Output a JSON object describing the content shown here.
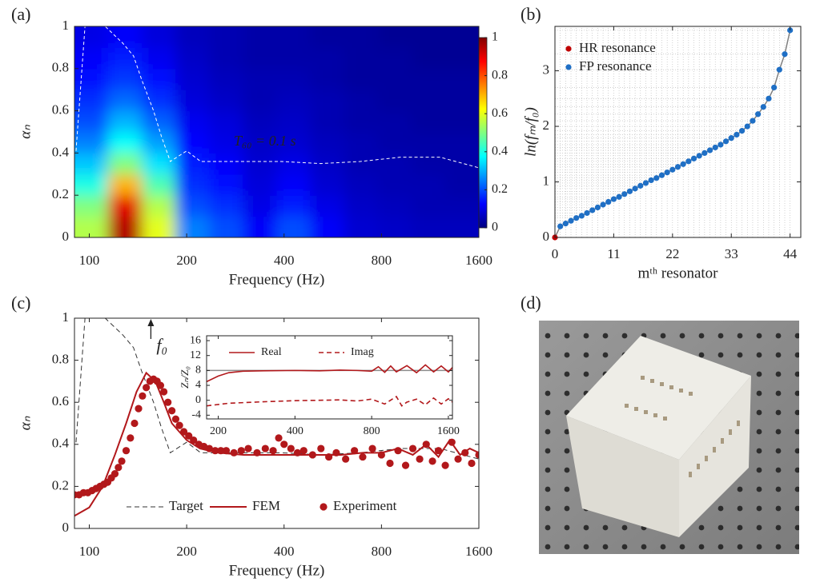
{
  "panel_labels": [
    "(a)",
    "(b)",
    "(c)",
    "(d)"
  ],
  "chart_data": [
    {
      "type": "heatmap",
      "xlabel": "Frequency (Hz)",
      "ylabel": "αₙ",
      "log_x": true,
      "xlim": [
        90,
        1600
      ],
      "ylim": [
        0,
        1
      ],
      "xticks": [
        100,
        200,
        400,
        800,
        1600
      ],
      "yticks": [
        0,
        0.2,
        0.4,
        0.6,
        0.8,
        1
      ],
      "x": [
        101,
        129,
        164,
        208,
        264,
        336,
        427,
        543,
        690,
        877,
        1115,
        1417
      ],
      "y": [
        0.05,
        0.15,
        0.25,
        0.35,
        0.45,
        0.55,
        0.65,
        0.75,
        0.85,
        0.95
      ],
      "z": [
        [
          0.55,
          0.95,
          0.6,
          0.25,
          0.2,
          0.12,
          0.2,
          0.12,
          0.08,
          0.07,
          0.06,
          0.06
        ],
        [
          0.5,
          0.9,
          0.55,
          0.2,
          0.17,
          0.1,
          0.15,
          0.1,
          0.07,
          0.06,
          0.05,
          0.05
        ],
        [
          0.4,
          0.7,
          0.45,
          0.17,
          0.14,
          0.09,
          0.12,
          0.08,
          0.06,
          0.05,
          0.05,
          0.04
        ],
        [
          0.32,
          0.5,
          0.35,
          0.15,
          0.12,
          0.08,
          0.1,
          0.07,
          0.05,
          0.05,
          0.04,
          0.04
        ],
        [
          0.25,
          0.38,
          0.28,
          0.13,
          0.1,
          0.07,
          0.08,
          0.06,
          0.05,
          0.04,
          0.04,
          0.04
        ],
        [
          0.2,
          0.3,
          0.22,
          0.11,
          0.09,
          0.06,
          0.07,
          0.05,
          0.04,
          0.04,
          0.03,
          0.03
        ],
        [
          0.17,
          0.23,
          0.17,
          0.09,
          0.07,
          0.05,
          0.06,
          0.05,
          0.04,
          0.03,
          0.03,
          0.03
        ],
        [
          0.14,
          0.18,
          0.14,
          0.08,
          0.06,
          0.05,
          0.05,
          0.04,
          0.03,
          0.03,
          0.03,
          0.03
        ],
        [
          0.12,
          0.15,
          0.11,
          0.07,
          0.05,
          0.04,
          0.04,
          0.04,
          0.03,
          0.03,
          0.02,
          0.02
        ],
        [
          0.1,
          0.12,
          0.09,
          0.06,
          0.05,
          0.04,
          0.04,
          0.03,
          0.03,
          0.02,
          0.02,
          0.02
        ]
      ],
      "colormap": "jet",
      "clim": [
        0,
        1
      ],
      "cticks": [
        0,
        0.2,
        0.4,
        0.6,
        0.8,
        1
      ],
      "overlay": {
        "color": "#ffffff",
        "x": [
          91,
          97,
          112,
          127,
          137,
          145,
          158,
          167,
          178,
          200,
          221,
          294,
          390,
          519,
          688,
          914,
          1216,
          1600
        ],
        "values": [
          0.41,
          1,
          1,
          0.92,
          0.86,
          0.75,
          0.6,
          0.48,
          0.36,
          0.41,
          0.36,
          0.36,
          0.36,
          0.35,
          0.36,
          0.38,
          0.38,
          0.33
        ]
      },
      "annotation": "T₆₀ = 0.1 s"
    },
    {
      "type": "scatter",
      "xlabel": "mᵗʰ resonator",
      "ylabel": "ln(fₘ/f₀)",
      "xlim": [
        0,
        46
      ],
      "ylim": [
        0,
        3.8
      ],
      "xticks": [
        0,
        11,
        22,
        33,
        44
      ],
      "yticks": [
        0,
        1,
        2,
        3
      ],
      "line_color": "#7f7f7f",
      "guides": true,
      "legend_loc": "upper left",
      "series": [
        {
          "name": "HR resonance",
          "color": "#c00000",
          "x": [
            0
          ],
          "values": [
            0
          ]
        },
        {
          "name": "FP resonance",
          "color": "#1f6fc5",
          "x": [
            1,
            2,
            3,
            4,
            5,
            6,
            7,
            8,
            9,
            10,
            11,
            12,
            13,
            14,
            15,
            16,
            17,
            18,
            19,
            20,
            21,
            22,
            23,
            24,
            25,
            26,
            27,
            28,
            29,
            30,
            31,
            32,
            33,
            34,
            35,
            36,
            37,
            38,
            39,
            40,
            41,
            42,
            43,
            44
          ],
          "values": [
            0.2,
            0.25,
            0.3,
            0.35,
            0.39,
            0.44,
            0.49,
            0.54,
            0.59,
            0.64,
            0.69,
            0.73,
            0.78,
            0.83,
            0.88,
            0.93,
            0.98,
            1.03,
            1.07,
            1.12,
            1.17,
            1.22,
            1.27,
            1.32,
            1.37,
            1.42,
            1.47,
            1.52,
            1.57,
            1.62,
            1.67,
            1.73,
            1.79,
            1.85,
            1.92,
            2.0,
            2.1,
            2.22,
            2.35,
            2.5,
            2.7,
            3.02,
            3.3,
            3.73
          ]
        }
      ]
    },
    {
      "type": "line",
      "xlabel": "Frequency (Hz)",
      "ylabel": "αₙ",
      "log_x": true,
      "xlim": [
        90,
        1600
      ],
      "ylim": [
        0,
        1
      ],
      "xticks": [
        100,
        200,
        400,
        800,
        1600
      ],
      "yticks": [
        0,
        0.2,
        0.4,
        0.6,
        0.8,
        1
      ],
      "legend_loc": "lower center",
      "annotation": {
        "text": "f₀",
        "x": 155
      },
      "series": [
        {
          "name": "Target",
          "style": "dashed",
          "color": "#333333",
          "x": [
            91,
            97,
            112,
            127,
            137,
            145,
            158,
            167,
            178,
            200,
            221,
            294,
            390,
            519,
            688,
            914,
            1216,
            1600
          ],
          "values": [
            0.41,
            1,
            1,
            0.92,
            0.86,
            0.75,
            0.6,
            0.48,
            0.36,
            0.41,
            0.36,
            0.36,
            0.36,
            0.35,
            0.36,
            0.38,
            0.38,
            0.33
          ]
        },
        {
          "name": "FEM",
          "style": "solid",
          "color": "#b2181b",
          "x": [
            90,
            100,
            110,
            120,
            130,
            140,
            150,
            160,
            170,
            180,
            200,
            220,
            250,
            300,
            400,
            500,
            600,
            700,
            800,
            900,
            1000,
            1100,
            1200,
            1300,
            1400,
            1500,
            1600
          ],
          "values": [
            0.06,
            0.1,
            0.2,
            0.35,
            0.5,
            0.65,
            0.74,
            0.7,
            0.6,
            0.5,
            0.42,
            0.38,
            0.36,
            0.35,
            0.35,
            0.35,
            0.35,
            0.36,
            0.36,
            0.38,
            0.35,
            0.4,
            0.34,
            0.42,
            0.35,
            0.38,
            0.36
          ]
        },
        {
          "name": "Experiment",
          "style": "marker",
          "color": "#b2181b",
          "x": [
            90,
            93,
            96,
            99,
            102,
            105,
            108,
            111,
            114,
            117,
            120,
            123,
            126,
            130,
            134,
            138,
            142,
            146,
            150,
            154,
            158,
            162,
            166,
            170,
            175,
            180,
            185,
            190,
            196,
            203,
            210,
            218,
            226,
            235,
            245,
            255,
            265,
            280,
            295,
            310,
            330,
            350,
            370,
            385,
            400,
            420,
            440,
            460,
            490,
            520,
            550,
            580,
            620,
            660,
            700,
            750,
            800,
            850,
            900,
            950,
            1000,
            1050,
            1100,
            1150,
            1200,
            1260,
            1320,
            1380,
            1450,
            1520,
            1600
          ],
          "values": [
            0.16,
            0.16,
            0.17,
            0.17,
            0.18,
            0.19,
            0.2,
            0.21,
            0.22,
            0.24,
            0.26,
            0.29,
            0.32,
            0.37,
            0.43,
            0.5,
            0.57,
            0.63,
            0.67,
            0.7,
            0.71,
            0.7,
            0.68,
            0.65,
            0.6,
            0.56,
            0.52,
            0.49,
            0.46,
            0.44,
            0.42,
            0.4,
            0.39,
            0.38,
            0.37,
            0.37,
            0.37,
            0.36,
            0.37,
            0.38,
            0.36,
            0.38,
            0.37,
            0.43,
            0.4,
            0.38,
            0.36,
            0.37,
            0.35,
            0.38,
            0.34,
            0.36,
            0.33,
            0.37,
            0.34,
            0.38,
            0.35,
            0.31,
            0.37,
            0.3,
            0.38,
            0.33,
            0.4,
            0.32,
            0.37,
            0.3,
            0.41,
            0.33,
            0.36,
            0.31,
            0.35
          ]
        }
      ],
      "inset": {
        "type": "line",
        "ylabel": "Zₙ/Z₀",
        "log_x": true,
        "xlim": [
          180,
          1660
        ],
        "ylim": [
          -5,
          17.3
        ],
        "xticks": [
          200,
          400,
          800,
          1600
        ],
        "yticks": [
          -4,
          0,
          4,
          8,
          12,
          16
        ],
        "hline": 8,
        "series": [
          {
            "name": "Real",
            "style": "solid",
            "color": "#b2181b",
            "x": [
              180,
              200,
              220,
              250,
              300,
              400,
              500,
              600,
              700,
              800,
              850,
              900,
              950,
              1000,
              1100,
              1200,
              1300,
              1400,
              1500,
              1600,
              1660
            ],
            "values": [
              5,
              6.5,
              7.4,
              7.8,
              7.9,
              8,
              7.9,
              8.1,
              8,
              7.8,
              9,
              7.5,
              9.2,
              7.6,
              9.3,
              7.4,
              9.5,
              7.6,
              9.2,
              7.6,
              8.8
            ]
          },
          {
            "name": "Imag",
            "style": "dashed",
            "color": "#b2181b",
            "x": [
              180,
              220,
              300,
              400,
              500,
              600,
              700,
              800,
              900,
              1000,
              1050,
              1100,
              1200,
              1300,
              1400,
              1500,
              1600,
              1660
            ],
            "values": [
              -1.5,
              -0.8,
              -0.4,
              -0.1,
              0,
              0.1,
              -0.2,
              0.3,
              -1,
              1,
              -1.5,
              -0.5,
              0.3,
              -1.2,
              0.6,
              -1,
              0.4,
              -0.5
            ]
          }
        ]
      }
    }
  ]
}
